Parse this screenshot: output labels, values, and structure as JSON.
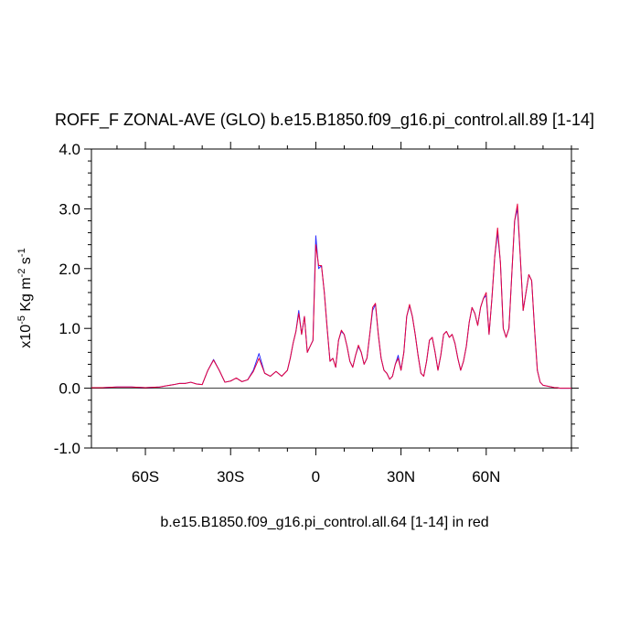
{
  "chart_data": {
    "type": "line",
    "title": "ROFF_F ZONAL-AVE (GLO) b.e15.B1850.f09_g16.pi_control.all.89 [1-14]",
    "xlabel": "b.e15.B1850.f09_g16.pi_control.all.64 [1-14] in red",
    "ylabel": [
      {
        "text": "x10"
      },
      {
        "text": "-5",
        "sup": true
      },
      {
        "text": " Kg m"
      },
      {
        "text": "-2",
        "sup": true
      },
      {
        "text": " s"
      },
      {
        "text": "-1",
        "sup": true
      }
    ],
    "xlim": [
      -79,
      90
    ],
    "ylim": [
      -1,
      4
    ],
    "xticks": [
      {
        "value": -60,
        "label": "60S"
      },
      {
        "value": -30,
        "label": "30S"
      },
      {
        "value": 0,
        "label": "0"
      },
      {
        "value": 30,
        "label": "30N"
      },
      {
        "value": 60,
        "label": "60N"
      }
    ],
    "yticks": [
      {
        "value": -1,
        "label": "-1.0"
      },
      {
        "value": 0,
        "label": "0.0"
      },
      {
        "value": 1,
        "label": "1.0"
      },
      {
        "value": 2,
        "label": "2.0"
      },
      {
        "value": 3,
        "label": "3.0"
      },
      {
        "value": 4,
        "label": "4.0"
      }
    ],
    "xminorticks": [
      -70,
      -50,
      -40,
      -20,
      -10,
      10,
      20,
      40,
      50,
      70,
      80,
      90
    ],
    "yminorticks": [
      -0.8,
      -0.6,
      -0.4,
      -0.2,
      0.2,
      0.4,
      0.6,
      0.8,
      1.2,
      1.4,
      1.6,
      1.8,
      2.2,
      2.4,
      2.6,
      2.8,
      3.2,
      3.4,
      3.6,
      3.8
    ],
    "zero_line": true,
    "x": [
      -79,
      -75,
      -70,
      -65,
      -60,
      -55,
      -50,
      -48,
      -46,
      -44,
      -42,
      -40,
      -38,
      -36,
      -34,
      -32,
      -30,
      -28,
      -26,
      -24,
      -22,
      -20,
      -18,
      -16,
      -14,
      -12,
      -10,
      -9,
      -8,
      -7,
      -6,
      -5,
      -4,
      -3,
      -2,
      -1,
      0,
      1,
      2,
      3,
      4,
      5,
      6,
      7,
      8,
      9,
      10,
      11,
      12,
      13,
      14,
      15,
      16,
      17,
      18,
      19,
      20,
      21,
      22,
      23,
      24,
      25,
      26,
      27,
      28,
      29,
      30,
      31,
      32,
      33,
      34,
      35,
      36,
      37,
      38,
      39,
      40,
      41,
      42,
      43,
      44,
      45,
      46,
      47,
      48,
      49,
      50,
      51,
      52,
      53,
      54,
      55,
      56,
      57,
      58,
      59,
      60,
      61,
      62,
      63,
      64,
      65,
      66,
      67,
      68,
      69,
      70,
      71,
      72,
      73,
      74,
      75,
      76,
      77,
      78,
      79,
      80,
      81,
      82,
      83,
      84,
      85,
      86,
      87,
      88,
      89,
      90
    ],
    "series": [
      {
        "name": "b.e15.B1850.f09_g16.pi_control.all.89",
        "color": "#2b2bff",
        "values": [
          0.01,
          0.01,
          0.02,
          0.02,
          0.01,
          0.02,
          0.06,
          0.08,
          0.08,
          0.1,
          0.07,
          0.06,
          0.3,
          0.48,
          0.3,
          0.1,
          0.12,
          0.17,
          0.11,
          0.14,
          0.3,
          0.58,
          0.25,
          0.2,
          0.28,
          0.2,
          0.3,
          0.5,
          0.75,
          0.95,
          1.3,
          0.9,
          1.2,
          0.6,
          0.7,
          0.8,
          2.55,
          2.0,
          2.05,
          1.6,
          1.0,
          0.45,
          0.5,
          0.35,
          0.8,
          0.95,
          0.9,
          0.7,
          0.45,
          0.35,
          0.55,
          0.7,
          0.6,
          0.4,
          0.5,
          0.9,
          1.3,
          1.4,
          0.9,
          0.5,
          0.3,
          0.25,
          0.15,
          0.2,
          0.4,
          0.55,
          0.3,
          0.6,
          1.2,
          1.38,
          1.2,
          0.9,
          0.55,
          0.25,
          0.2,
          0.45,
          0.8,
          0.85,
          0.6,
          0.3,
          0.55,
          0.9,
          0.95,
          0.85,
          0.9,
          0.75,
          0.5,
          0.3,
          0.45,
          0.7,
          1.1,
          1.35,
          1.25,
          1.05,
          1.35,
          1.5,
          1.55,
          0.9,
          1.5,
          2.2,
          2.6,
          2.1,
          1.0,
          0.85,
          1.0,
          1.9,
          2.8,
          3.0,
          2.2,
          1.3,
          1.6,
          1.9,
          1.8,
          1.0,
          0.3,
          0.1,
          0.05,
          0.04,
          0.03,
          0.02,
          0.01,
          0.01,
          0,
          0,
          0,
          0,
          0
        ]
      },
      {
        "name": "b.e15.B1850.f09_g16.pi_control.all.64",
        "color": "#e8003a",
        "values": [
          0.01,
          0.01,
          0.02,
          0.02,
          0.01,
          0.02,
          0.06,
          0.08,
          0.08,
          0.1,
          0.07,
          0.06,
          0.3,
          0.47,
          0.3,
          0.1,
          0.12,
          0.17,
          0.11,
          0.14,
          0.28,
          0.5,
          0.25,
          0.2,
          0.28,
          0.2,
          0.3,
          0.5,
          0.75,
          0.95,
          1.25,
          0.9,
          1.2,
          0.6,
          0.7,
          0.8,
          2.4,
          2.05,
          2.05,
          1.6,
          1.0,
          0.45,
          0.5,
          0.35,
          0.8,
          0.97,
          0.9,
          0.7,
          0.45,
          0.35,
          0.55,
          0.72,
          0.6,
          0.4,
          0.5,
          0.9,
          1.35,
          1.42,
          0.9,
          0.5,
          0.3,
          0.25,
          0.15,
          0.2,
          0.4,
          0.5,
          0.3,
          0.6,
          1.2,
          1.4,
          1.2,
          0.9,
          0.55,
          0.25,
          0.2,
          0.45,
          0.8,
          0.85,
          0.6,
          0.3,
          0.55,
          0.9,
          0.95,
          0.85,
          0.9,
          0.75,
          0.5,
          0.3,
          0.45,
          0.7,
          1.1,
          1.35,
          1.25,
          1.05,
          1.35,
          1.5,
          1.6,
          0.9,
          1.5,
          2.2,
          2.68,
          2.1,
          1.0,
          0.85,
          1.0,
          1.9,
          2.8,
          3.08,
          2.2,
          1.3,
          1.6,
          1.9,
          1.8,
          1.0,
          0.3,
          0.1,
          0.05,
          0.04,
          0.03,
          0.02,
          0.01,
          0.01,
          0,
          0,
          0,
          0,
          0
        ]
      }
    ]
  }
}
